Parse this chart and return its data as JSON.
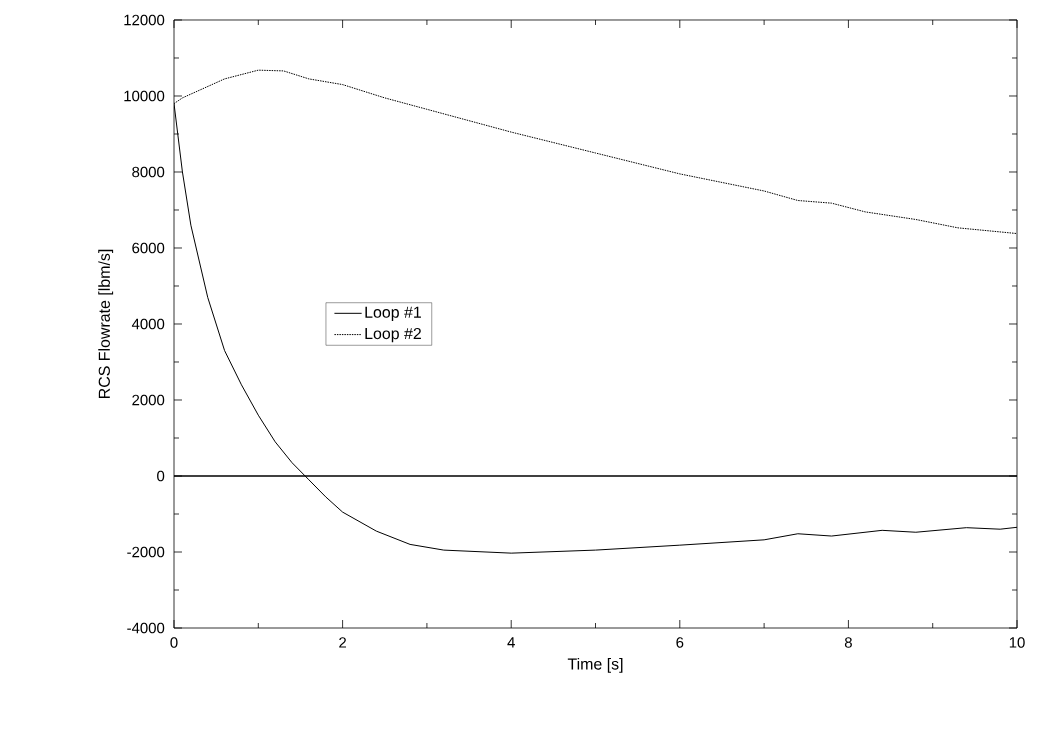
{
  "chart_data": {
    "type": "line",
    "xlabel": "Time [s]",
    "ylabel": "RCS Flowrate [lbm/s]",
    "xlim": [
      0,
      10
    ],
    "xticks": [
      0,
      2,
      4,
      6,
      8,
      10
    ],
    "ylim": [
      -4000,
      12000
    ],
    "yticks": [
      -4000,
      -2000,
      0,
      2000,
      4000,
      6000,
      8000,
      10000,
      12000
    ],
    "grid": false,
    "legend": "left",
    "marker": "none",
    "ref_lines": [
      {
        "axis": "y",
        "value": 0
      }
    ],
    "series": [
      {
        "name": "Loop #1",
        "color": "#000000",
        "line_style": "solid",
        "x": [
          0,
          0.1,
          0.2,
          0.4,
          0.6,
          0.8,
          1.0,
          1.2,
          1.4,
          1.6,
          1.8,
          2.0,
          2.4,
          2.8,
          3.2,
          4,
          5,
          6,
          7,
          7.4,
          7.8,
          8.4,
          8.8,
          9.4,
          9.8,
          10
        ],
        "values": [
          9800,
          8000,
          6600,
          4700,
          3300,
          2400,
          1600,
          900,
          350,
          -100,
          -550,
          -950,
          -1450,
          -1800,
          -1950,
          -2030,
          -1950,
          -1820,
          -1680,
          -1520,
          -1580,
          -1430,
          -1480,
          -1360,
          -1400,
          -1350
        ]
      },
      {
        "name": "Loop #2",
        "color": "#000000",
        "line_style": "dotted",
        "x": [
          0,
          0.1,
          0.3,
          0.6,
          1.0,
          1.3,
          1.6,
          2.0,
          2.5,
          3,
          4,
          5,
          6,
          7,
          7.4,
          7.8,
          8.2,
          8.8,
          9.3,
          10
        ],
        "values": [
          9800,
          9950,
          10150,
          10450,
          10680,
          10660,
          10450,
          10300,
          9950,
          9650,
          9050,
          8500,
          7950,
          7500,
          7250,
          7180,
          6950,
          6750,
          6530,
          6380
        ]
      }
    ]
  }
}
